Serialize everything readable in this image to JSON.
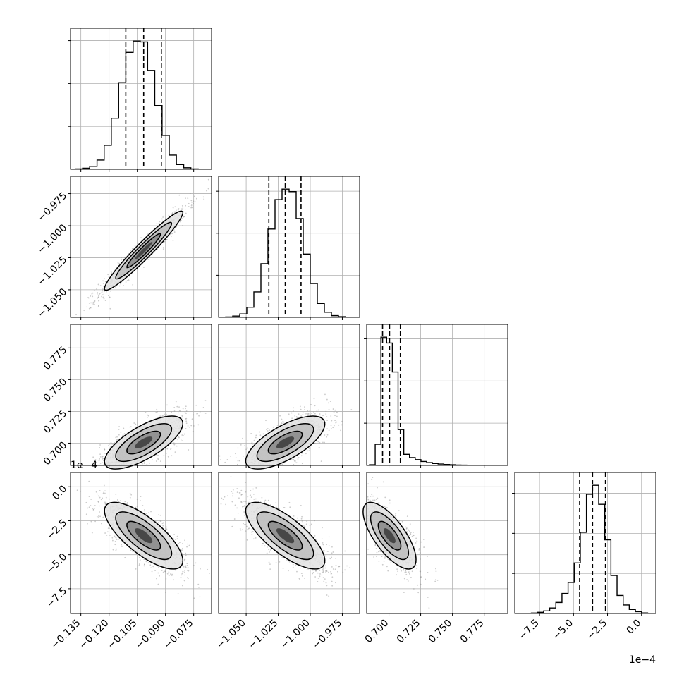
{
  "figure": {
    "panel_grid": 4,
    "scale_labels": {
      "y_row4": "1e−4",
      "x_col4": "1e−4"
    }
  },
  "chart_data": {
    "type": "corner",
    "grid": true,
    "title": "",
    "params": [
      {
        "range": [
          -0.1405,
          -0.0655
        ],
        "ticks": [
          "−0.135",
          "−0.120",
          "−0.105",
          "−0.090",
          "−0.075"
        ],
        "tick_values": [
          -0.135,
          -0.12,
          -0.105,
          -0.09,
          -0.075
        ],
        "quantiles": [
          -0.1111,
          -0.1016,
          -0.0922
        ]
      },
      {
        "range": [
          -1.0715,
          -0.9615
        ],
        "ticks": [
          "−1.050",
          "−1.025",
          "−1.000",
          "−0.975"
        ],
        "tick_values": [
          -1.05,
          -1.025,
          -1.0,
          -0.975
        ],
        "quantiles": [
          -1.0323,
          -1.0195,
          -1.0072
        ]
      },
      {
        "range": [
          0.6825,
          0.7935
        ],
        "ticks": [
          "0.700",
          "0.725",
          "0.750",
          "0.775"
        ],
        "tick_values": [
          0.7,
          0.725,
          0.75,
          0.775
        ],
        "quantiles": [
          0.695,
          0.7005,
          0.709
        ]
      },
      {
        "range": [
          -9.32,
          1.05
        ],
        "ticks": [
          "−7.5",
          "−5.0",
          "−2.5",
          "0.0"
        ],
        "tick_values": [
          -7.5,
          -5.0,
          -2.5,
          0.0
        ],
        "quantiles": [
          -4.55,
          -3.6,
          -2.65
        ]
      }
    ],
    "histograms": [
      {
        "bins": [
          -0.138,
          -0.1341,
          -0.1303,
          -0.1264,
          -0.1226,
          -0.1188,
          -0.1149,
          -0.1111,
          -0.1072,
          -0.1034,
          -0.0995,
          -0.0957,
          -0.0918,
          -0.088,
          -0.0842,
          -0.0803,
          -0.0765,
          -0.0726,
          -0.0688
        ],
        "counts": [
          2,
          5,
          14,
          43,
          112,
          238,
          404,
          545,
          598,
          594,
          461,
          297,
          158,
          66,
          22,
          7,
          2,
          1
        ]
      },
      {
        "bins": [
          -1.066,
          -1.0605,
          -1.055,
          -1.0495,
          -1.044,
          -1.0385,
          -1.033,
          -1.0275,
          -1.022,
          -1.0165,
          -1.011,
          -1.0055,
          -1.0,
          -0.9945,
          -0.989,
          -0.9835,
          -0.978,
          -0.9725,
          -0.967
        ],
        "counts": [
          2,
          6,
          16,
          48,
          121,
          255,
          420,
          560,
          610,
          598,
          470,
          301,
          161,
          66,
          24,
          8,
          3,
          1
        ]
      },
      {
        "bins": [
          0.6847,
          0.6892,
          0.6937,
          0.6982,
          0.7027,
          0.7072,
          0.7117,
          0.7162,
          0.7207,
          0.7252,
          0.7297,
          0.7342,
          0.7387,
          0.7432,
          0.7477,
          0.7522,
          0.7567,
          0.7612,
          0.7657,
          0.7702,
          0.7747
        ],
        "counts": [
          6,
          200,
          1215,
          1160,
          885,
          340,
          105,
          74,
          55,
          37,
          26,
          18,
          13,
          9,
          6,
          4,
          3,
          2,
          1,
          1
        ]
      },
      {
        "bins": [
          -9.0,
          -8.55,
          -8.1,
          -7.65,
          -7.2,
          -6.75,
          -6.3,
          -5.85,
          -5.4,
          -4.95,
          -4.5,
          -4.05,
          -3.6,
          -3.15,
          -2.7,
          -2.25,
          -1.8,
          -1.35,
          -0.9,
          -0.45,
          0.0,
          0.45
        ],
        "counts": [
          1,
          2,
          5,
          12,
          26,
          55,
          110,
          200,
          310,
          505,
          810,
          1190,
          1280,
          1090,
          735,
          380,
          180,
          85,
          40,
          18,
          6
        ]
      }
    ],
    "pairs": [
      {
        "x": 0,
        "y": 1,
        "mean": [
          -0.1016,
          -1.0195
        ],
        "std": [
          0.0085,
          0.0126
        ],
        "corr": 0.96
      },
      {
        "x": 0,
        "y": 2,
        "mean": [
          -0.1016,
          0.7005
        ],
        "std": [
          0.0085,
          0.0085
        ],
        "corr": 0.72
      },
      {
        "x": 1,
        "y": 2,
        "mean": [
          -1.0195,
          0.7005
        ],
        "std": [
          0.0126,
          0.0085
        ],
        "corr": 0.7
      },
      {
        "x": 0,
        "y": 3,
        "mean": [
          -0.1016,
          -3.6
        ],
        "std": [
          0.0085,
          1.0
        ],
        "corr": -0.75
      },
      {
        "x": 1,
        "y": 3,
        "mean": [
          -1.0195,
          -3.6
        ],
        "std": [
          0.0126,
          1.0
        ],
        "corr": -0.75
      },
      {
        "x": 2,
        "y": 3,
        "mean": [
          0.7005,
          -3.6
        ],
        "std": [
          0.0085,
          1.0
        ],
        "corr": -0.72
      }
    ],
    "colors": {
      "line": "#000000",
      "grid": "#b0b0b0",
      "points": "#8c8c8c",
      "quantile": "#000000"
    }
  }
}
